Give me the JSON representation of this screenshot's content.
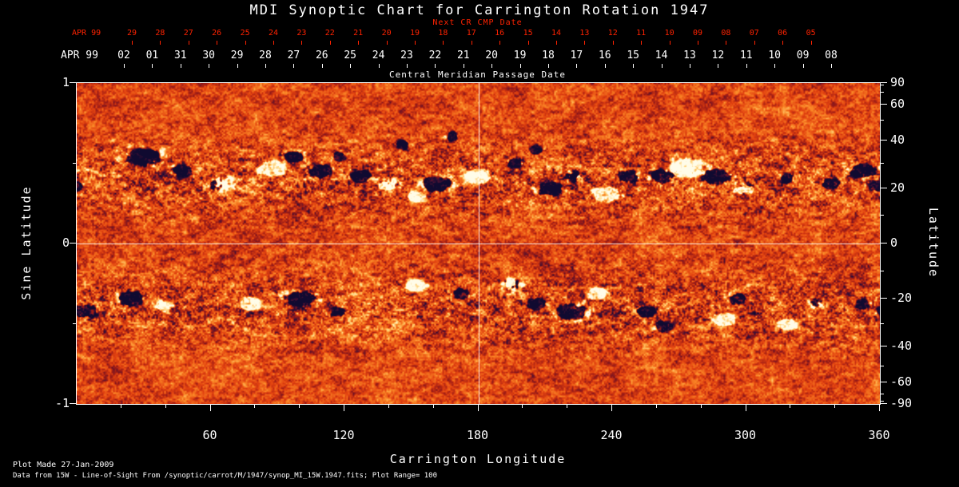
{
  "title": "MDI Synoptic Chart for Carrington Rotation 1947",
  "colors": {
    "background": "#000000",
    "axis_text": "#ffffff",
    "next_cr_axis": "#ff2200",
    "map_base_orange": "#e24210",
    "map_positive_white": "#fffce8",
    "map_negative_dark": "#100a30"
  },
  "top_axis": {
    "month_label": "APR 99",
    "title": "Next CR CMP Date",
    "dates": [
      "29",
      "28",
      "27",
      "26",
      "25",
      "24",
      "23",
      "22",
      "21",
      "20",
      "19",
      "18",
      "17",
      "16",
      "15",
      "14",
      "13",
      "12",
      "11",
      "10",
      "09",
      "08",
      "07",
      "06",
      "05"
    ]
  },
  "cmp_axis": {
    "month_label": "APR 99",
    "title": "Central Meridian Passage Date",
    "dates": [
      "02",
      "01",
      "31",
      "30",
      "29",
      "28",
      "27",
      "26",
      "25",
      "24",
      "23",
      "22",
      "21",
      "20",
      "19",
      "18",
      "17",
      "16",
      "15",
      "14",
      "13",
      "12",
      "11",
      "10",
      "09",
      "08"
    ]
  },
  "left_axis": {
    "label": "Sine Latitude",
    "ticks": [
      "1",
      "0",
      "-1"
    ]
  },
  "right_axis": {
    "label": "Latitude",
    "ticks": [
      "90",
      "60",
      "40",
      "20",
      "0",
      "-20",
      "-40",
      "-60",
      "-90"
    ]
  },
  "bottom_axis": {
    "label": "Carrington Longitude",
    "ticks": [
      "60",
      "120",
      "180",
      "240",
      "300",
      "360"
    ]
  },
  "footer": {
    "line1": "Plot Made 27-Jan-2009",
    "line2": "Data from 15W - Line-of-Sight From /synoptic/carrot/M/1947/synop_MI_15W.1947.fits; Plot Range=  100"
  },
  "chart_data": {
    "type": "heatmap",
    "title": "MDI Synoptic Chart for Carrington Rotation 1947",
    "xlabel": "Carrington Longitude",
    "ylabel_left": "Sine Latitude",
    "ylabel_right": "Latitude",
    "xlim": [
      0,
      360
    ],
    "ylim_sine_latitude": [
      -1,
      1
    ],
    "x_ticks_major": [
      60,
      120,
      180,
      240,
      300,
      360
    ],
    "x_tick_minor_step": 20,
    "sine_ticks": [
      1,
      0,
      -1
    ],
    "sine_minor_ticks": [
      0.5,
      -0.5
    ],
    "lat_ticks": [
      90,
      60,
      40,
      20,
      0,
      -20,
      -40,
      -60,
      -90
    ],
    "lat_minor_ticks": [
      80,
      70,
      50,
      30,
      10,
      -10,
      -30,
      -50,
      -70,
      -80
    ],
    "crosshair": {
      "longitude": 180,
      "sine_latitude": 0
    },
    "plot_range_gauss": 100,
    "colormap_description": "weak field orange-red background; positive field yellow to white; negative field dark red to navy-black",
    "active_regions": [
      {
        "lon": 30,
        "lat": 33,
        "polarity": "neg",
        "size": 2.4
      },
      {
        "lon": 47,
        "lat": 27,
        "polarity": "neg",
        "size": 1.4
      },
      {
        "lon": 64,
        "lat": 22,
        "polarity": "mixed",
        "size": 1.8
      },
      {
        "lon": 88,
        "lat": 28,
        "polarity": "pos",
        "size": 1.8
      },
      {
        "lon": 97,
        "lat": 33,
        "polarity": "neg",
        "size": 1.3
      },
      {
        "lon": 109,
        "lat": 27,
        "polarity": "neg",
        "size": 1.6
      },
      {
        "lon": 118,
        "lat": 33,
        "polarity": "neg",
        "size": 0.9
      },
      {
        "lon": 127,
        "lat": 25,
        "polarity": "neg",
        "size": 1.4
      },
      {
        "lon": 140,
        "lat": 22,
        "polarity": "mixed",
        "size": 1.4
      },
      {
        "lon": 146,
        "lat": 38,
        "polarity": "neg",
        "size": 0.9
      },
      {
        "lon": 152,
        "lat": 17,
        "polarity": "pos",
        "size": 1.1
      },
      {
        "lon": 161,
        "lat": 22,
        "polarity": "neg",
        "size": 2.0
      },
      {
        "lon": 168,
        "lat": 42,
        "polarity": "neg",
        "size": 0.8
      },
      {
        "lon": 180,
        "lat": 25,
        "polarity": "pos",
        "size": 1.7
      },
      {
        "lon": 196,
        "lat": 30,
        "polarity": "neg",
        "size": 1.0
      },
      {
        "lon": 206,
        "lat": 36,
        "polarity": "neg",
        "size": 0.8
      },
      {
        "lon": 212,
        "lat": 20,
        "polarity": "neg",
        "size": 1.8
      },
      {
        "lon": 223,
        "lat": 25,
        "polarity": "mixed",
        "size": 1.4
      },
      {
        "lon": 237,
        "lat": 18,
        "polarity": "pos",
        "size": 1.8
      },
      {
        "lon": 247,
        "lat": 25,
        "polarity": "neg",
        "size": 1.4
      },
      {
        "lon": 262,
        "lat": 25,
        "polarity": "neg",
        "size": 1.6
      },
      {
        "lon": 273,
        "lat": 28,
        "polarity": "pos",
        "size": 2.2
      },
      {
        "lon": 286,
        "lat": 25,
        "polarity": "neg",
        "size": 2.0
      },
      {
        "lon": 299,
        "lat": 20,
        "polarity": "mixed",
        "size": 1.4
      },
      {
        "lon": 318,
        "lat": 24,
        "polarity": "neg",
        "size": 0.9
      },
      {
        "lon": 338,
        "lat": 22,
        "polarity": "neg",
        "size": 1.2
      },
      {
        "lon": 352,
        "lat": 27,
        "polarity": "neg",
        "size": 1.8
      },
      {
        "lon": 359,
        "lat": 21,
        "polarity": "neg",
        "size": 1.1
      },
      {
        "lon": 4,
        "lat": -25,
        "polarity": "neg",
        "size": 1.6
      },
      {
        "lon": 24,
        "lat": -20,
        "polarity": "neg",
        "size": 1.8
      },
      {
        "lon": 40,
        "lat": -23,
        "polarity": "mixed",
        "size": 1.1
      },
      {
        "lon": 78,
        "lat": -22,
        "polarity": "pos",
        "size": 1.4
      },
      {
        "lon": 100,
        "lat": -20,
        "polarity": "neg",
        "size": 2.0
      },
      {
        "lon": 117,
        "lat": -25,
        "polarity": "neg",
        "size": 1.1
      },
      {
        "lon": 152,
        "lat": -15,
        "polarity": "pos",
        "size": 1.2
      },
      {
        "lon": 172,
        "lat": -18,
        "polarity": "neg",
        "size": 1.1
      },
      {
        "lon": 195,
        "lat": -15,
        "polarity": "mixed",
        "size": 1.6
      },
      {
        "lon": 206,
        "lat": -22,
        "polarity": "neg",
        "size": 1.2
      },
      {
        "lon": 222,
        "lat": -25,
        "polarity": "neg",
        "size": 2.1
      },
      {
        "lon": 233,
        "lat": -18,
        "polarity": "pos",
        "size": 1.2
      },
      {
        "lon": 255,
        "lat": -25,
        "polarity": "neg",
        "size": 1.4
      },
      {
        "lon": 263,
        "lat": -31,
        "polarity": "neg",
        "size": 1.1
      },
      {
        "lon": 290,
        "lat": -28,
        "polarity": "pos",
        "size": 1.4
      },
      {
        "lon": 296,
        "lat": -20,
        "polarity": "neg",
        "size": 1.1
      },
      {
        "lon": 318,
        "lat": -30,
        "polarity": "pos",
        "size": 1.1
      },
      {
        "lon": 331,
        "lat": -22,
        "polarity": "mixed",
        "size": 1.0
      },
      {
        "lon": 352,
        "lat": -22,
        "polarity": "neg",
        "size": 0.9
      }
    ]
  }
}
